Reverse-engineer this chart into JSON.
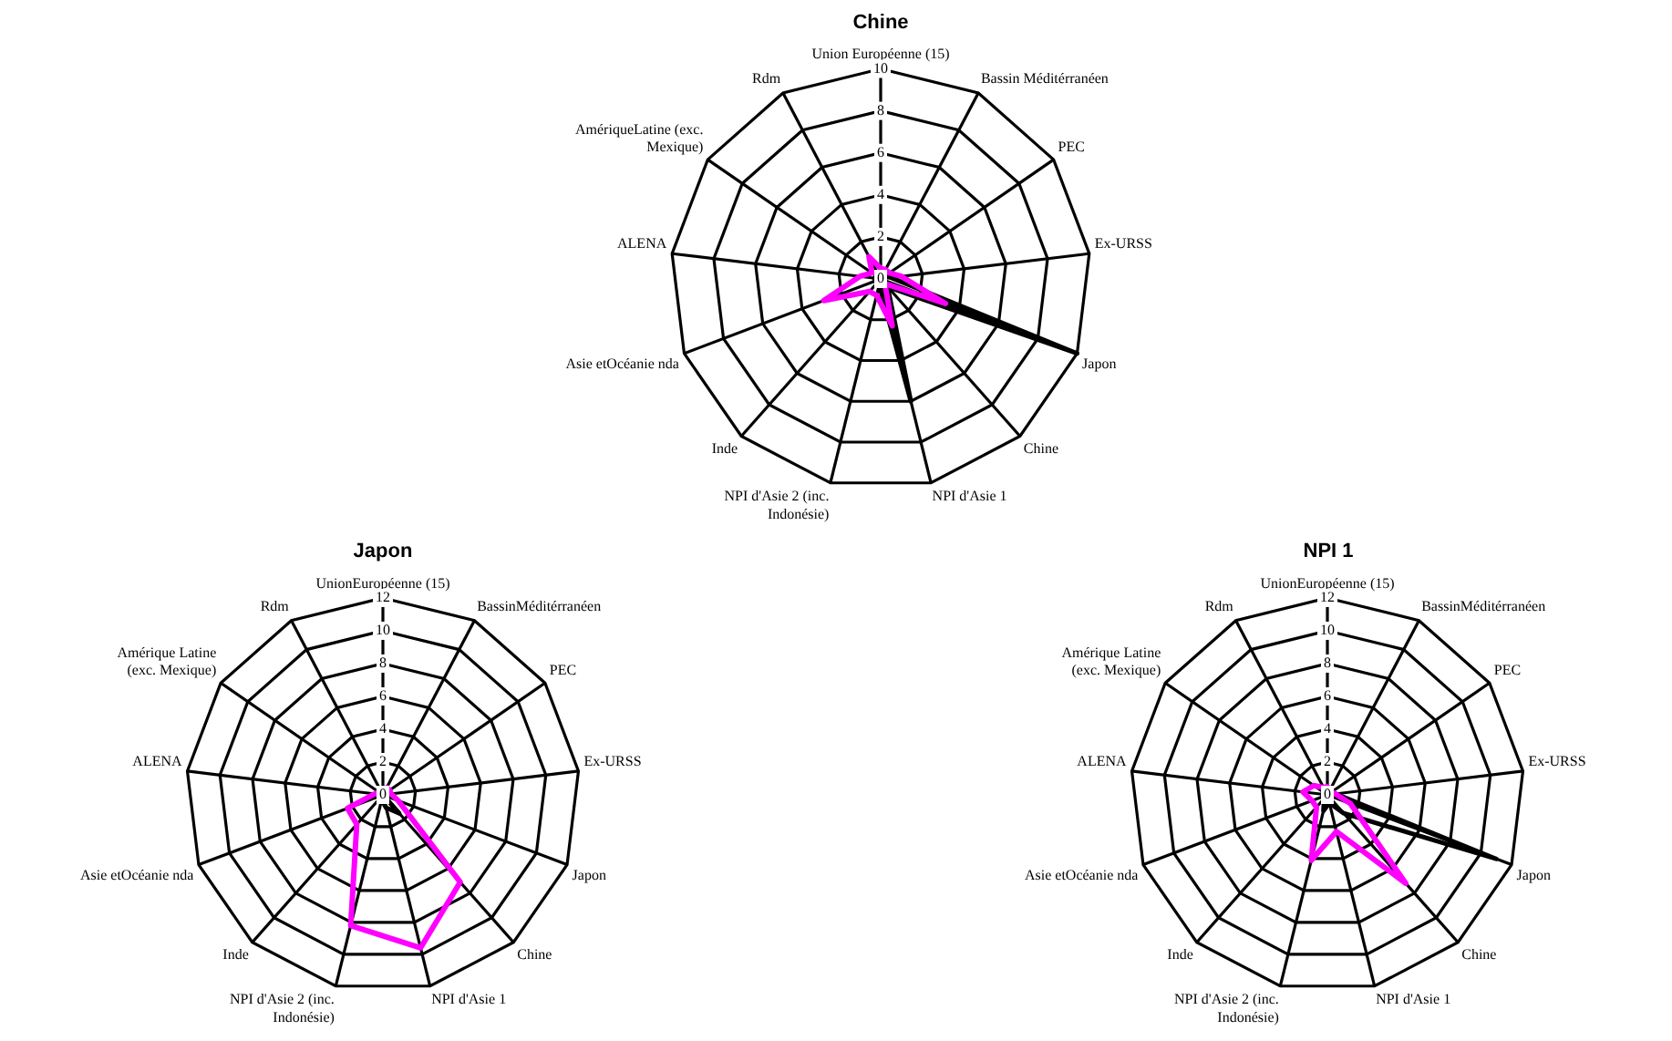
{
  "chart_data": [
    {
      "type": "radar",
      "title": "Chine",
      "categories": [
        "Union Européenne (15)",
        "Bassin Méditérranéen",
        "PEC",
        "Ex-URSS",
        "Japon",
        "Chine",
        "NPI d'Asie 1",
        "NPI d'Asie 2 (inc. Indonésie)",
        "Inde",
        "Asie etOcéanie nda",
        "ALENA",
        "AmériqueLatine (exc. Mexique)",
        "Rdm"
      ],
      "ylim": [
        0,
        10
      ],
      "yticks": [
        0,
        2,
        4,
        6,
        8,
        10
      ],
      "grid": true,
      "marker": "none",
      "line_style": "solid",
      "series": [
        {
          "color": "#ff00ff",
          "values": [
            0.5,
            0.5,
            0.5,
            1.0,
            3.3,
            0.3,
            2.3,
            0.8,
            0.8,
            2.9,
            1.0,
            0.5,
            1.2
          ]
        },
        {
          "color": "#000000",
          "values": [
            0.3,
            0.3,
            0.3,
            0.5,
            10,
            0.5,
            6,
            0.3,
            0.2,
            0.3,
            0.3,
            0.2,
            0.3
          ]
        }
      ]
    },
    {
      "type": "radar",
      "title": "Japon",
      "categories": [
        "UnionEuropéenne (15)",
        "BassinMéditérranéen",
        "PEC",
        "Ex-URSS",
        "Japon",
        "Chine",
        "NPI d'Asie 1",
        "NPI d'Asie 2 (inc. Indonésie)",
        "Inde",
        "Asie etOcéanie nda",
        "ALENA",
        "Amérique Latine (exc. Mexique)",
        "Rdm"
      ],
      "ylim": [
        0,
        12
      ],
      "yticks": [
        0,
        2,
        4,
        6,
        8,
        10,
        12
      ],
      "grid": true,
      "marker": "none",
      "line_style": "solid",
      "series": [
        {
          "color": "#ff00ff",
          "values": [
            0.3,
            0.5,
            0.5,
            0.5,
            1.0,
            7.1,
            9.6,
            8.2,
            2.4,
            2.3,
            0.5,
            0.3,
            0.3
          ]
        },
        {
          "color": "#000000",
          "values": [
            0.3,
            0.3,
            0.3,
            0.3,
            0,
            1.5,
            0.8,
            0.3,
            0.2,
            0.2,
            0.2,
            0.2,
            0.2
          ]
        }
      ]
    },
    {
      "type": "radar",
      "title": "NPI 1",
      "categories": [
        "UnionEuropéenne (15)",
        "BassinMéditérranéen",
        "PEC",
        "Ex-URSS",
        "Japon",
        "Chine",
        "NPI d'Asie 1",
        "NPI d'Asie 2 (inc. Indonésie)",
        "Inde",
        "Asie etOcéanie nda",
        "ALENA",
        "Amérique Latine (exc. Mexique)",
        "Rdm"
      ],
      "ylim": [
        0,
        12
      ],
      "yticks": [
        0,
        2,
        4,
        6,
        8,
        10,
        12
      ],
      "grid": true,
      "marker": "none",
      "line_style": "solid",
      "series": [
        {
          "color": "#ff00ff",
          "values": [
            0.5,
            0.3,
            0.3,
            0.5,
            1.5,
            7.2,
            2.3,
            4.1,
            1.0,
            1.0,
            1.5,
            1.0,
            0.5
          ]
        },
        {
          "color": "#000000",
          "values": [
            0.3,
            0.3,
            0.3,
            0.5,
            11,
            1.5,
            0.5,
            1.0,
            0.3,
            0.3,
            0.3,
            0.3,
            0.3
          ]
        }
      ]
    }
  ]
}
